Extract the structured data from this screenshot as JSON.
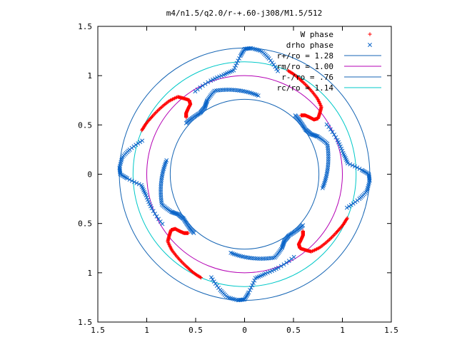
{
  "chart_data": {
    "type": "scatter",
    "title": "m4/n1.5/q2.0/r-+.60-j308/M1.5/512",
    "xlim": [
      -1.5,
      1.5
    ],
    "ylim": [
      -1.5,
      1.5
    ],
    "x_ticks": [
      "1.5",
      "1",
      "0.5",
      "0",
      "0.5",
      "1",
      "1.5"
    ],
    "x_tick_values": [
      -1.5,
      -1,
      -0.5,
      0,
      0.5,
      1,
      1.5
    ],
    "y_ticks": [
      "1.5",
      "1",
      "0.5",
      "0",
      "0.5",
      "1",
      "1.5"
    ],
    "y_tick_values": [
      1.5,
      1,
      0.5,
      0,
      -0.5,
      -1,
      -1.5
    ],
    "grid": false,
    "legend_position": "top-right",
    "legend": [
      {
        "label": "W phase",
        "kind": "marker",
        "marker": "+",
        "color": "#ff0000"
      },
      {
        "label": "drho phase",
        "kind": "marker",
        "marker": "x",
        "color": "#0a64c8"
      },
      {
        "label": "r+/ro = 1.28",
        "kind": "line",
        "color": "#1464b4"
      },
      {
        "label": "rm/ro = 1.00",
        "kind": "line",
        "color": "#b400b4"
      },
      {
        "label": "r-/ro = .76",
        "kind": "line",
        "color": "#1464b4"
      },
      {
        "label": "rc/ro = 1.14",
        "kind": "line",
        "color": "#00c8c8"
      }
    ],
    "circles": [
      {
        "name": "r+/ro",
        "r": 1.28,
        "color": "#1464b4"
      },
      {
        "name": "rm/ro",
        "r": 1.0,
        "color": "#b400b4"
      },
      {
        "name": "r-/ro",
        "r": 0.76,
        "color": "#1464b4"
      },
      {
        "name": "rc/ro",
        "r": 1.14,
        "color": "#00c8c8"
      }
    ],
    "arms": 4,
    "series": [
      {
        "name": "W phase",
        "color": "#ff0000",
        "marker": "+",
        "arm_polar": [
          {
            "r": 0.83,
            "deg": 136
          },
          {
            "r": 0.86,
            "deg": 134
          },
          {
            "r": 0.88,
            "deg": 131
          },
          {
            "r": 0.9,
            "deg": 128
          },
          {
            "r": 0.94,
            "deg": 127
          },
          {
            "r": 0.99,
            "deg": 129
          },
          {
            "r": 1.04,
            "deg": 131
          },
          {
            "r": 1.07,
            "deg": 136
          },
          {
            "r": 1.09,
            "deg": 142
          },
          {
            "r": 1.11,
            "deg": 148
          },
          {
            "r": 1.13,
            "deg": 153
          },
          {
            "r": 1.14,
            "deg": 157
          }
        ]
      },
      {
        "name": "drho phase",
        "color": "#0a64c8",
        "marker": "x",
        "arm_polar": [
          {
            "r": 0.81,
            "deg": 80
          },
          {
            "r": 0.84,
            "deg": 90
          },
          {
            "r": 0.87,
            "deg": 100
          },
          {
            "r": 0.9,
            "deg": 110
          },
          {
            "r": 0.84,
            "deg": 117
          },
          {
            "r": 0.79,
            "deg": 121
          },
          {
            "r": 0.77,
            "deg": 126
          },
          {
            "r": 0.78,
            "deg": 133
          },
          {
            "r": 0.79,
            "deg": 139
          }
        ],
        "outer_arm_polar": [
          {
            "r": 1.1,
            "deg": 162
          },
          {
            "r": 1.2,
            "deg": 168
          },
          {
            "r": 1.26,
            "deg": 172
          },
          {
            "r": 1.28,
            "deg": 177
          },
          {
            "r": 1.27,
            "deg": 180
          },
          {
            "r": 1.2,
            "deg": 182
          },
          {
            "r": 1.06,
            "deg": 186
          },
          {
            "r": 1.03,
            "deg": 192
          },
          {
            "r": 1.01,
            "deg": 200
          },
          {
            "r": 0.98,
            "deg": 211
          }
        ]
      }
    ]
  }
}
